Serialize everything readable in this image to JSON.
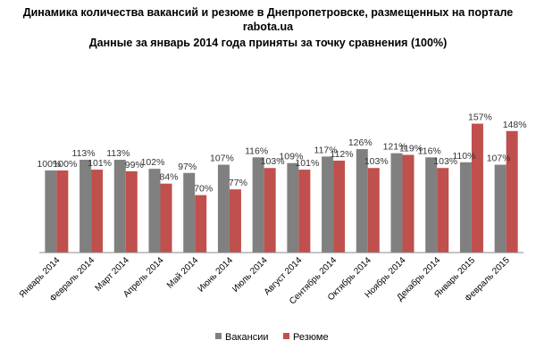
{
  "header": {
    "title_line1": "Динамика количества вакансий и резюме в Днепропетровске, размещенных на портале rabota.ua",
    "title_line2": "Данные за январь 2014 года приняты за точку сравнения (100%)"
  },
  "legend": {
    "vacancies": "Вакансии",
    "resumes": "Резюме"
  },
  "chart_data": {
    "type": "bar",
    "title": "Динамика количества вакансий и резюме в Днепропетровске, размещенных на портале rabota.ua",
    "subtitle": "Данные за январь 2014 года приняты за точку сравнения (100%)",
    "categories": [
      "Январь 2014",
      "Февраль 2014",
      "Март 2014",
      "Апрель 2014",
      "Май 2014",
      "Июнь 2014",
      "Июль 2014",
      "Август 2014",
      "Сентябрь 2014",
      "Октябрь 2014",
      "Ноябрь 2014",
      "Декабрь 2014",
      "Январь 2015",
      "Февраль 2015"
    ],
    "series": [
      {
        "name": "Вакансии",
        "color": "#808080",
        "values": [
          100,
          113,
          113,
          102,
          97,
          107,
          116,
          109,
          117,
          126,
          121,
          116,
          110,
          107
        ],
        "labels": [
          "100%",
          "113%",
          "113%",
          "102%",
          "97%",
          "107%",
          "116%",
          "109%",
          "117%",
          "126%",
          "121%",
          "116%",
          "110%",
          "107%"
        ]
      },
      {
        "name": "Резюме",
        "color": "#C0504D",
        "values": [
          100,
          101,
          99,
          84,
          70,
          77,
          103,
          101,
          112,
          103,
          119,
          103,
          157,
          148
        ],
        "labels": [
          "100%",
          "101%",
          "99%",
          "84%",
          "70%",
          "77%",
          "103%",
          "101%",
          "112%",
          "103%",
          "119%",
          "103%",
          "157%",
          "148%"
        ]
      }
    ],
    "ylim": [
      0,
      160
    ],
    "grid": false,
    "legend_position": "bottom"
  }
}
